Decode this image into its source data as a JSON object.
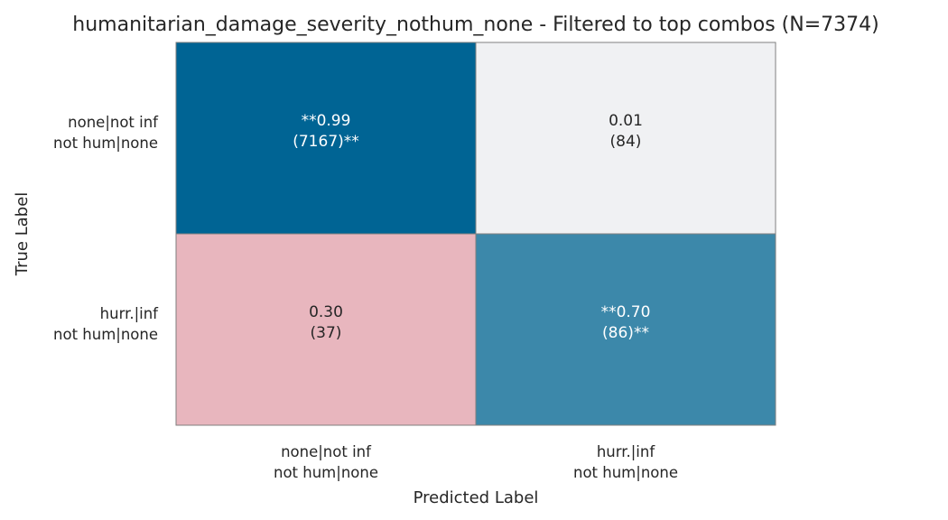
{
  "chart_data": {
    "type": "heatmap",
    "title": "humanitarian_damage_severity_nothum_none - Filtered to top combos (N=7374)",
    "xlabel": "Predicted Label",
    "ylabel": "True Label",
    "x_categories": [
      [
        "none|not inf",
        "not hum|none"
      ],
      [
        "hurr.|inf",
        "not hum|none"
      ]
    ],
    "y_categories": [
      [
        "none|not inf",
        "not hum|none"
      ],
      [
        "hurr.|inf",
        "not hum|none"
      ]
    ],
    "cells": [
      [
        {
          "ratio": 0.99,
          "count": 7167,
          "line1": "**0.99",
          "line2": "(7167)**",
          "fill": "#006494",
          "text_color": "#ffffff"
        },
        {
          "ratio": 0.01,
          "count": 84,
          "line1": "0.01",
          "line2": "(84)",
          "fill": "#f0f1f3",
          "text_color": "#262626"
        }
      ],
      [
        {
          "ratio": 0.3,
          "count": 37,
          "line1": "0.30",
          "line2": "(37)",
          "fill": "#e8b6be",
          "text_color": "#262626"
        },
        {
          "ratio": 0.7,
          "count": 86,
          "line1": "**0.70",
          "line2": "(86)**",
          "fill": "#3c88aa",
          "text_color": "#ffffff"
        }
      ]
    ],
    "grid": false,
    "colorbar": false
  }
}
